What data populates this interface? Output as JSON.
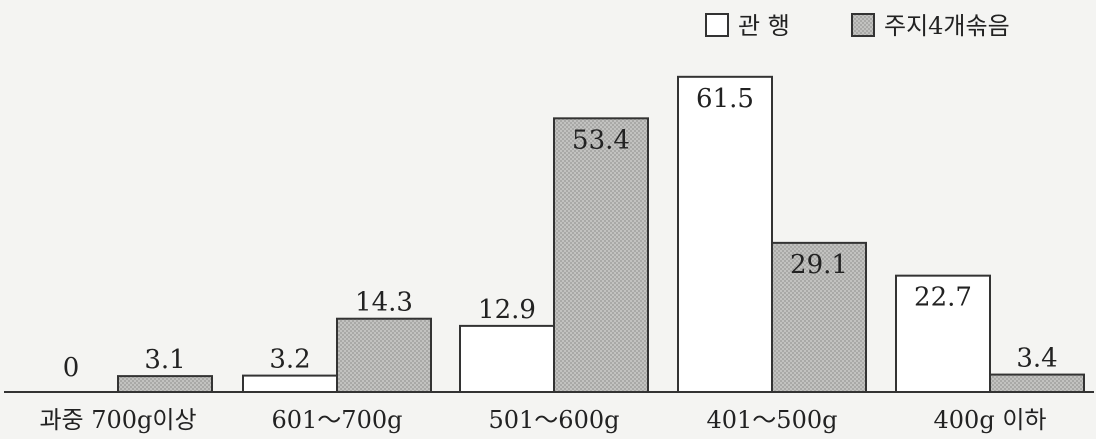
{
  "chart_data": {
    "type": "bar",
    "categories": [
      "과중 700g이상",
      "601～700g",
      "501～600g",
      "401～500g",
      "400g 이하"
    ],
    "series": [
      {
        "name": "관 행",
        "values": [
          0,
          3.2,
          12.9,
          61.5,
          22.7
        ],
        "color": "#ffffff"
      },
      {
        "name": "주지4개솎음",
        "values": [
          3.1,
          14.3,
          53.4,
          29.1,
          3.4
        ],
        "color": "#b8b8b6"
      }
    ],
    "data_labels": [
      [
        "0",
        "3.2",
        "12.9",
        "61.5",
        "22.7"
      ],
      [
        "3.1",
        "14.3",
        "53.4",
        "29.1",
        "3.4"
      ]
    ],
    "ylim": [
      0,
      64
    ],
    "legend_position": "top-right",
    "grid": false
  }
}
